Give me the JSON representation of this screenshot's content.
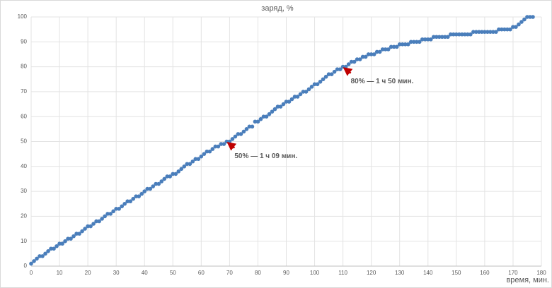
{
  "chart_data": {
    "type": "scatter",
    "title": "заряд, %",
    "x_label": "время, мин.",
    "series": [
      {
        "name": "заряд",
        "color": "#4a7ebb",
        "x": [
          0,
          1,
          2,
          3,
          4,
          5,
          6,
          7,
          8,
          9,
          10,
          11,
          12,
          13,
          14,
          15,
          16,
          17,
          18,
          19,
          20,
          21,
          22,
          23,
          24,
          25,
          26,
          27,
          28,
          29,
          30,
          31,
          32,
          33,
          34,
          35,
          36,
          37,
          38,
          39,
          40,
          41,
          42,
          43,
          44,
          45,
          46,
          47,
          48,
          49,
          50,
          51,
          52,
          53,
          54,
          55,
          56,
          57,
          58,
          59,
          60,
          61,
          62,
          63,
          64,
          65,
          66,
          67,
          68,
          69,
          70,
          71,
          72,
          73,
          74,
          75,
          76,
          77,
          78,
          79,
          80,
          81,
          82,
          83,
          84,
          85,
          86,
          87,
          88,
          89,
          90,
          91,
          92,
          93,
          94,
          95,
          96,
          97,
          98,
          99,
          100,
          101,
          102,
          103,
          104,
          105,
          106,
          107,
          108,
          109,
          110,
          111,
          112,
          113,
          114,
          115,
          116,
          117,
          118,
          119,
          120,
          121,
          122,
          123,
          124,
          125,
          126,
          127,
          128,
          129,
          130,
          131,
          132,
          133,
          134,
          135,
          136,
          137,
          138,
          139,
          140,
          141,
          142,
          143,
          144,
          145,
          146,
          147,
          148,
          149,
          150,
          151,
          152,
          153,
          154,
          155,
          156,
          157,
          158,
          159,
          160,
          161,
          162,
          163,
          164,
          165,
          166,
          167,
          168,
          169,
          170,
          171,
          172,
          173,
          174,
          175,
          176,
          177
        ],
        "values": [
          1,
          2,
          3,
          4,
          4,
          5,
          6,
          7,
          7,
          8,
          9,
          9,
          10,
          11,
          11,
          12,
          13,
          13,
          14,
          15,
          16,
          16,
          17,
          18,
          18,
          19,
          20,
          21,
          21,
          22,
          23,
          23,
          24,
          25,
          26,
          26,
          27,
          28,
          28,
          29,
          30,
          31,
          31,
          32,
          33,
          33,
          34,
          35,
          36,
          36,
          37,
          37,
          38,
          39,
          40,
          41,
          41,
          42,
          43,
          43,
          44,
          45,
          46,
          46,
          47,
          48,
          48,
          49,
          49,
          50,
          50,
          51,
          52,
          53,
          53,
          54,
          55,
          56,
          56,
          58,
          58,
          59,
          60,
          60,
          61,
          62,
          63,
          64,
          64,
          65,
          66,
          66,
          67,
          68,
          68,
          69,
          70,
          70,
          71,
          72,
          73,
          73,
          74,
          75,
          76,
          77,
          77,
          78,
          79,
          79,
          80,
          80,
          81,
          82,
          82,
          83,
          83,
          84,
          84,
          85,
          85,
          85,
          86,
          86,
          87,
          87,
          87,
          88,
          88,
          88,
          89,
          89,
          89,
          89,
          90,
          90,
          90,
          90,
          91,
          91,
          91,
          91,
          92,
          92,
          92,
          92,
          92,
          92,
          93,
          93,
          93,
          93,
          93,
          93,
          93,
          93,
          94,
          94,
          94,
          94,
          94,
          94,
          94,
          94,
          94,
          95,
          95,
          95,
          95,
          95,
          96,
          96,
          97,
          98,
          99,
          100,
          100,
          100
        ]
      }
    ],
    "annotations": [
      {
        "text": "80% — 1 ч 50 мин.",
        "x": 110,
        "y": 80
      },
      {
        "text": "50% — 1 ч 09 мин.",
        "x": 69,
        "y": 50
      }
    ],
    "xlim": [
      0,
      180
    ],
    "xticks": [
      0,
      10,
      20,
      30,
      40,
      50,
      60,
      70,
      80,
      90,
      100,
      110,
      120,
      130,
      140,
      150,
      160,
      170,
      180
    ],
    "ylim": [
      0,
      100
    ],
    "yticks": [
      0,
      10,
      20,
      30,
      40,
      50,
      60,
      70,
      80,
      90,
      100
    ],
    "grid": true
  }
}
